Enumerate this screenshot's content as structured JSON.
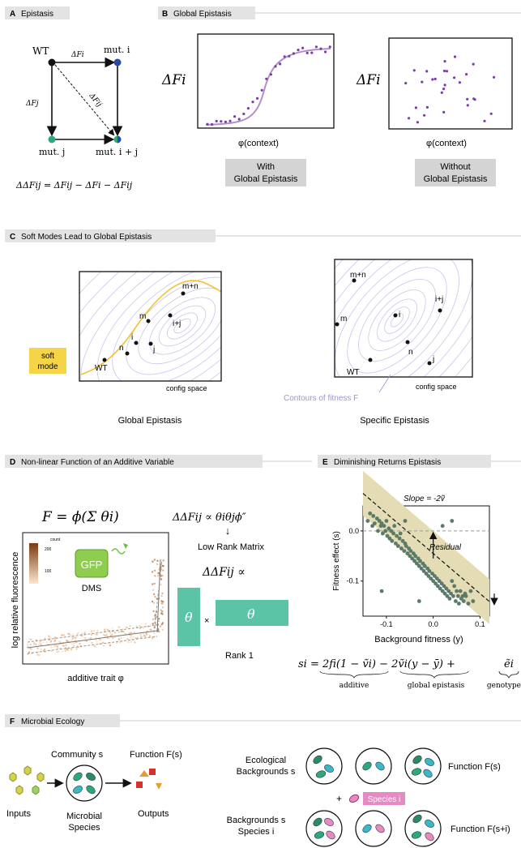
{
  "panels": {
    "a": {
      "letter": "A",
      "title": "Epistasis"
    },
    "b": {
      "letter": "B",
      "title": "Global Epistasis"
    },
    "c": {
      "letter": "C",
      "title": "Soft Modes Lead to Global Epistasis"
    },
    "d": {
      "letter": "D",
      "title": "Non-linear Function of an Additive Variable"
    },
    "e": {
      "letter": "E",
      "title": "Diminishing Returns Epistasis"
    },
    "f": {
      "letter": "F",
      "title": "Microbial Ecology"
    }
  },
  "epistasis": {
    "wt": "WT",
    "mut_i": "mut. i",
    "mut_j": "mut. j",
    "mut_ij": "mut. i + j",
    "edge_i": "ΔFi",
    "edge_j": "ΔFj",
    "edge_ij": "ΔFij",
    "equation": "ΔΔFij = ΔFij − ΔFi − ΔFij"
  },
  "global_epistasis": {
    "ylabel": "ΔFi",
    "xlabel": "φ(context)",
    "with_label": [
      "With",
      "Global Epistasis"
    ],
    "without_label": [
      "Without",
      "Global Epistasis"
    ]
  },
  "soft_modes": {
    "left_points": [
      "WT",
      "n",
      "i",
      "j",
      "m",
      "i+j",
      "m+n"
    ],
    "right_points": [
      "m+n",
      "i",
      "i+j",
      "m",
      "n",
      "j",
      "WT"
    ],
    "config_space": "config space",
    "soft_mode": [
      "soft",
      "mode"
    ],
    "contours": "Contours of fitness F",
    "left_caption": "Global Epistasis",
    "right_caption": "Specific Epistasis"
  },
  "nonlinear": {
    "eq_main": "F = ϕ(Σ θi)",
    "eq_ddf": "ΔΔFij ∝ θiθjϕ″",
    "arrow": "↓",
    "low_rank": "Low Rank Matrix",
    "eq_prop": "ΔΔFij ∝",
    "theta": "θ",
    "times": "×",
    "rank1": "Rank 1",
    "ylabel": "log relative fluorescence",
    "xlabel": "additive trait φ",
    "count": "count",
    "count_ticks": [
      "200",
      "100"
    ],
    "gfp": "GFP",
    "dms": "DMS"
  },
  "diminishing": {
    "slope": "Slope = -2ṽ",
    "residual": "Residual",
    "ylabel": "Fitness effect (s)",
    "xlabel": "Background fitness (y)",
    "eq_lhs": "si = 2fi(1 − ṽi) − 2ṽi(y − ȳ) +",
    "eq_e": "ẽi",
    "under_additive": "additive",
    "under_global": "global epistasis",
    "under_genotype": "genotype"
  },
  "chart_data": {
    "type": "scatter",
    "xlabel": "Background fitness (y)",
    "ylabel": "Fitness effect (s)",
    "xlim": [
      -0.15,
      0.12
    ],
    "ylim": [
      -0.17,
      0.05
    ],
    "xticks": [
      "-0.1",
      "0.0",
      "0.1"
    ],
    "yticks": [
      "0.0",
      "-0.1"
    ],
    "annotation": "Slope = -2ṽ",
    "fit": {
      "slope": -0.8,
      "intercept": -0.045
    },
    "x": [
      -0.14,
      -0.135,
      -0.13,
      -0.128,
      -0.125,
      -0.12,
      -0.118,
      -0.115,
      -0.112,
      -0.11,
      -0.108,
      -0.105,
      -0.102,
      -0.1,
      -0.098,
      -0.095,
      -0.093,
      -0.09,
      -0.088,
      -0.085,
      -0.083,
      -0.08,
      -0.078,
      -0.075,
      -0.072,
      -0.07,
      -0.068,
      -0.065,
      -0.062,
      -0.06,
      -0.058,
      -0.055,
      -0.052,
      -0.05,
      -0.048,
      -0.045,
      -0.042,
      -0.04,
      -0.038,
      -0.035,
      -0.032,
      -0.03,
      -0.028,
      -0.025,
      -0.022,
      -0.02,
      -0.018,
      -0.015,
      -0.012,
      -0.01,
      -0.008,
      -0.005,
      -0.002,
      0.0,
      0.003,
      0.005,
      0.008,
      0.01,
      0.013,
      0.015,
      0.018,
      0.02,
      0.023,
      0.025,
      0.028,
      0.03,
      0.033,
      0.035,
      0.038,
      0.04,
      0.043,
      0.045,
      0.048,
      0.05,
      0.053,
      0.055,
      0.058,
      0.06,
      0.063,
      0.065,
      0.068,
      0.07,
      0.075,
      0.08,
      0.085,
      -0.06,
      -0.03,
      0.02,
      0.04,
      -0.11
    ],
    "y": [
      0.02,
      0.035,
      0.01,
      0.03,
      0.015,
      0.025,
      0.0,
      0.02,
      0.01,
      0.015,
      -0.005,
      0.01,
      0.0,
      0.02,
      -0.01,
      0.005,
      -0.015,
      0.0,
      -0.02,
      -0.005,
      0.01,
      -0.025,
      -0.01,
      -0.03,
      -0.015,
      -0.005,
      -0.035,
      -0.02,
      -0.04,
      -0.025,
      -0.03,
      -0.045,
      -0.035,
      -0.05,
      -0.04,
      -0.055,
      -0.045,
      -0.06,
      -0.05,
      -0.065,
      -0.055,
      -0.07,
      -0.06,
      -0.075,
      -0.065,
      -0.08,
      -0.07,
      -0.085,
      -0.075,
      -0.09,
      -0.08,
      -0.095,
      -0.085,
      -0.1,
      -0.09,
      -0.105,
      -0.095,
      -0.11,
      -0.1,
      -0.115,
      -0.105,
      -0.12,
      -0.11,
      -0.125,
      -0.115,
      -0.13,
      -0.12,
      -0.135,
      -0.125,
      -0.1,
      -0.13,
      -0.11,
      -0.14,
      -0.12,
      -0.13,
      -0.145,
      -0.12,
      -0.135,
      -0.13,
      -0.14,
      -0.125,
      -0.13,
      -0.145,
      -0.12,
      -0.14,
      0.02,
      -0.14,
      0.01,
      0.02,
      -0.12
    ]
  },
  "ecology": {
    "community": "Community s",
    "function": "Function F(s)",
    "inputs": "Inputs",
    "species": [
      "Microbial",
      "Species"
    ],
    "outputs": "Outputs",
    "eco_bg": [
      "Ecological",
      "Backgrounds s"
    ],
    "plus": "+",
    "species_i": "Species i",
    "bg_species": [
      "Backgrounds s",
      "Species i"
    ],
    "function_top": "Function F(s)",
    "function_bottom": "Function F(s+i)"
  }
}
